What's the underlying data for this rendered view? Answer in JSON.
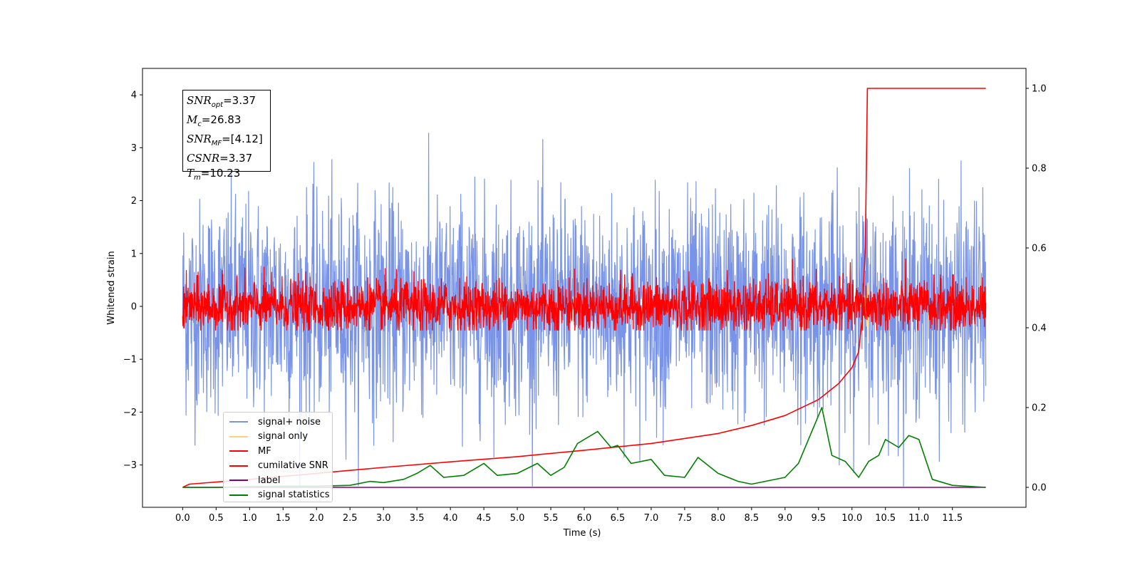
{
  "chart_data": {
    "type": "line",
    "xlabel": "Time (s)",
    "ylabel": "Whitened strain",
    "xlim": [
      -0.6,
      12.6
    ],
    "ylim": [
      -3.8,
      4.5
    ],
    "y2lim": [
      -0.05,
      1.05
    ],
    "xticks": [
      "0.0",
      "0.5",
      "1.0",
      "1.5",
      "2.0",
      "2.5",
      "3.0",
      "3.5",
      "4.0",
      "4.5",
      "5.0",
      "5.5",
      "6.0",
      "6.5",
      "7.0",
      "7.5",
      "8.0",
      "8.5",
      "9.0",
      "9.5",
      "10.0",
      "10.5",
      "11.0",
      "11.5"
    ],
    "yticks": [
      -3,
      -2,
      -1,
      0,
      1,
      2,
      3,
      4
    ],
    "y2ticks": [
      0.0,
      0.2,
      0.4,
      0.6,
      0.8,
      1.0
    ],
    "y2tick_labels": [
      "0.0",
      "0.2",
      "0.4",
      "0.6",
      "0.8",
      "1.0"
    ],
    "ytick_labels": [
      "−3",
      "−2",
      "−1",
      "0",
      "1",
      "2",
      "3",
      "4"
    ],
    "series": [
      {
        "name": "signal+ noise",
        "color": "#7893e7",
        "axis": "left",
        "description_range": [
          -3.4,
          4.2
        ],
        "x_range": [
          0,
          12.0
        ],
        "samples": 2400,
        "amplitude_std": 1.0
      },
      {
        "name": "signal only",
        "color": "#f7d27a",
        "axis": "left",
        "x_range": [
          10.1,
          10.25
        ],
        "peak": 0.75,
        "trough": -0.7
      },
      {
        "name": "MF",
        "color": "#ff0000",
        "axis": "left",
        "x_range": [
          0,
          12.0
        ],
        "samples": 2400,
        "amplitude_std": 0.25,
        "max": 0.98,
        "min": -0.45
      },
      {
        "name": "cumilative SNR",
        "color": "#ff0000",
        "axis": "right",
        "x": [
          0.0,
          0.1,
          1.0,
          2.0,
          3.0,
          4.0,
          5.0,
          6.0,
          7.0,
          8.0,
          8.5,
          9.0,
          9.5,
          9.8,
          10.0,
          10.1,
          10.15,
          10.2,
          10.23,
          12.0
        ],
        "y": [
          0.0,
          0.008,
          0.02,
          0.035,
          0.05,
          0.064,
          0.077,
          0.093,
          0.11,
          0.135,
          0.155,
          0.18,
          0.22,
          0.26,
          0.3,
          0.34,
          0.42,
          0.6,
          1.0,
          1.0
        ]
      },
      {
        "name": "label",
        "color": "#800080",
        "axis": "right",
        "x": [
          0.0,
          12.0
        ],
        "y": [
          0.0,
          0.0
        ]
      },
      {
        "name": "signal statistics",
        "color": "#008000",
        "axis": "right",
        "x": [
          0.0,
          0.5,
          1.0,
          1.5,
          2.0,
          2.5,
          2.8,
          3.0,
          3.3,
          3.5,
          3.7,
          3.9,
          4.2,
          4.5,
          4.7,
          5.0,
          5.3,
          5.5,
          5.7,
          5.9,
          6.2,
          6.4,
          6.5,
          6.7,
          7.0,
          7.2,
          7.5,
          7.7,
          8.0,
          8.3,
          8.5,
          9.0,
          9.2,
          9.4,
          9.55,
          9.7,
          9.9,
          10.1,
          10.25,
          10.4,
          10.5,
          10.7,
          10.85,
          11.0,
          11.2,
          11.5,
          12.0
        ],
        "y": [
          0.0,
          0.0,
          0.002,
          0.003,
          0.003,
          0.005,
          0.015,
          0.012,
          0.02,
          0.035,
          0.055,
          0.025,
          0.03,
          0.06,
          0.03,
          0.035,
          0.06,
          0.03,
          0.05,
          0.11,
          0.14,
          0.1,
          0.105,
          0.06,
          0.07,
          0.03,
          0.025,
          0.075,
          0.035,
          0.015,
          0.008,
          0.025,
          0.06,
          0.14,
          0.2,
          0.08,
          0.065,
          0.025,
          0.065,
          0.08,
          0.12,
          0.1,
          0.13,
          0.12,
          0.02,
          0.005,
          0.0
        ]
      }
    ]
  },
  "info_box": {
    "snr_opt_label": "SNR",
    "snr_opt_sub": "opt",
    "snr_opt_value": "=3.37",
    "mc_label": "M",
    "mc_sub": "c",
    "mc_value": "=26.83",
    "snr_mf_label": "SNR",
    "snr_mf_sub": "MF",
    "snr_mf_value": "=[4.12]",
    "csnr_label": "CSNR",
    "csnr_value": "=3.37",
    "tm_label": "T",
    "tm_sub": "m",
    "tm_value": "=10.23"
  },
  "legend": {
    "items": [
      {
        "label": "signal+ noise",
        "color": "#7893e7"
      },
      {
        "label": "signal only",
        "color": "#f7d27a"
      },
      {
        "label": "MF",
        "color": "#ff0000"
      },
      {
        "label": "cumilative SNR",
        "color": "#ff0000"
      },
      {
        "label": "label",
        "color": "#800080"
      },
      {
        "label": "signal statistics",
        "color": "#008000"
      }
    ]
  }
}
